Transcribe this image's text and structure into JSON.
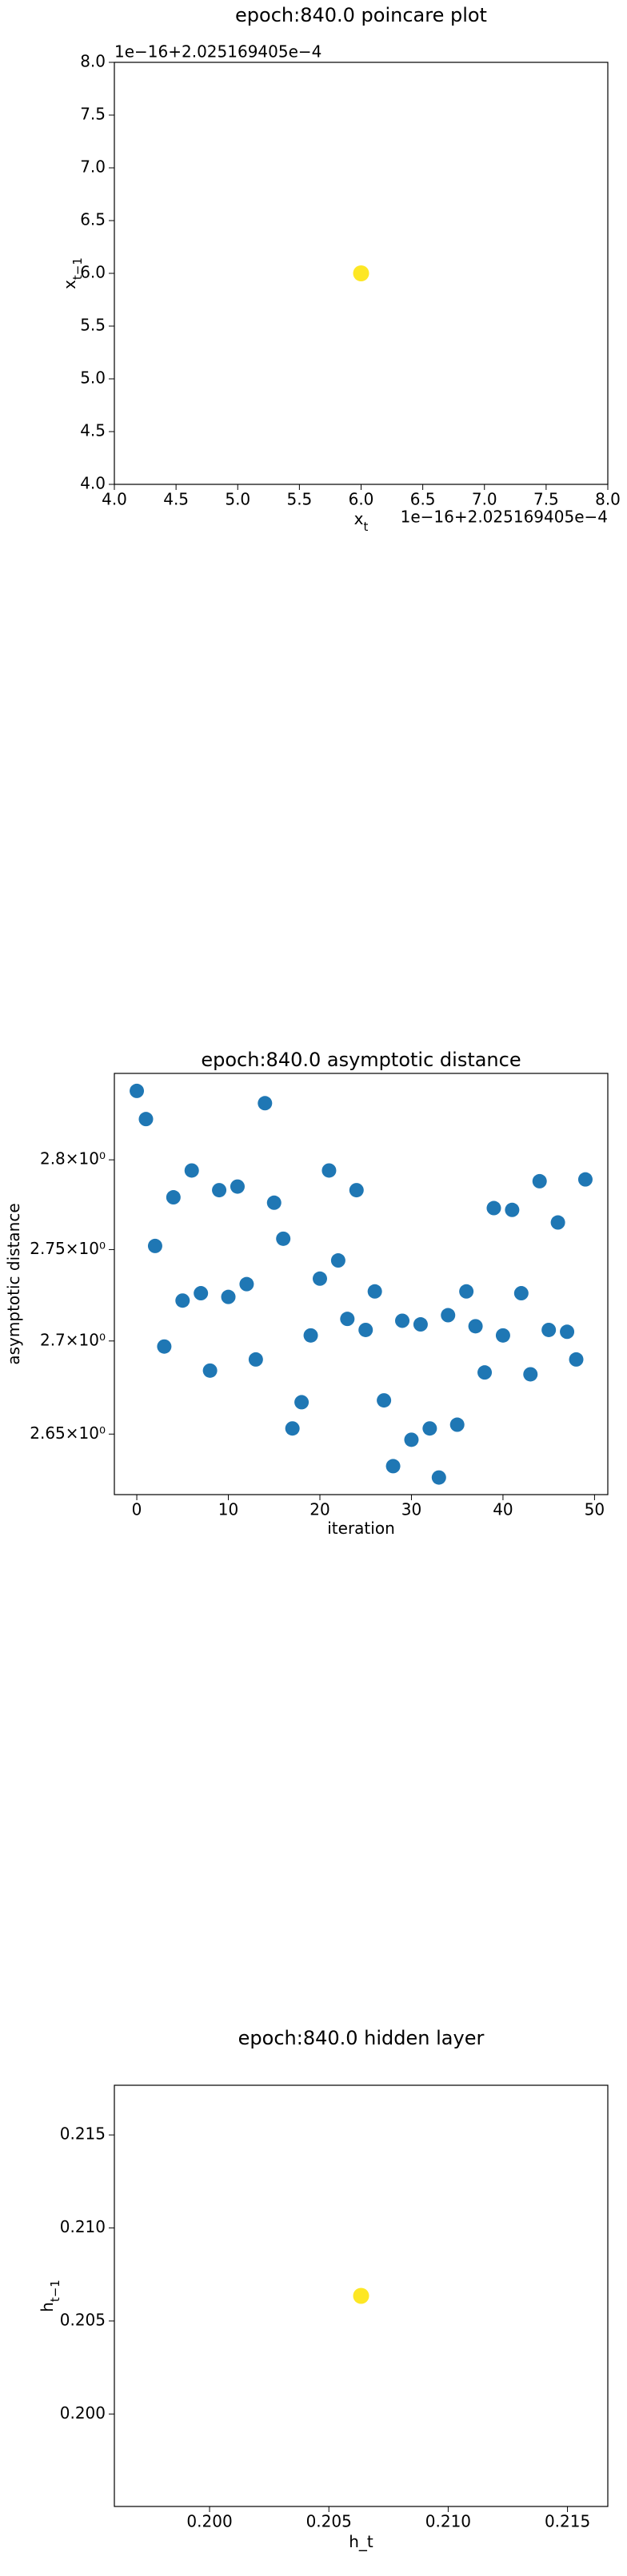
{
  "chart_data": [
    {
      "type": "scatter",
      "title": "epoch:840.0 poincare plot",
      "xlabel": {
        "text": "x",
        "sub": "t"
      },
      "ylabel": {
        "text": "x",
        "sub": "t−1"
      },
      "x_offset": "1e−16+2.025169405e−4",
      "y_offset": "1e−16+2.025169405e−4",
      "x": [
        6
      ],
      "values": [
        6
      ],
      "color": "#fde725",
      "xlim": [
        4,
        8
      ],
      "ylim": [
        4,
        8
      ],
      "xticks": [
        {
          "value": 4,
          "label": "4.0"
        },
        {
          "value": 4.5,
          "label": "4.5"
        },
        {
          "value": 5,
          "label": "5.0"
        },
        {
          "value": 5.5,
          "label": "5.5"
        },
        {
          "value": 6,
          "label": "6.0"
        },
        {
          "value": 6.5,
          "label": "6.5"
        },
        {
          "value": 7,
          "label": "7.0"
        },
        {
          "value": 7.5,
          "label": "7.5"
        },
        {
          "value": 8,
          "label": "8.0"
        }
      ],
      "yticks": [
        {
          "value": 4,
          "label": "4.0"
        },
        {
          "value": 4.5,
          "label": "4.5"
        },
        {
          "value": 5,
          "label": "5.0"
        },
        {
          "value": 5.5,
          "label": "5.5"
        },
        {
          "value": 6,
          "label": "6.0"
        },
        {
          "value": 6.5,
          "label": "6.5"
        },
        {
          "value": 7,
          "label": "7.0"
        },
        {
          "value": 7.5,
          "label": "7.5"
        },
        {
          "value": 8,
          "label": "8.0"
        }
      ]
    },
    {
      "type": "scatter",
      "title": "epoch:840.0 asymptotic distance",
      "xlabel": {
        "text": "iteration"
      },
      "ylabel": {
        "text": "asymptotic distance"
      },
      "yscale": "log",
      "x": [
        0,
        1,
        2,
        3,
        4,
        5,
        6,
        7,
        8,
        9,
        10,
        11,
        12,
        13,
        14,
        15,
        16,
        17,
        18,
        19,
        20,
        21,
        22,
        23,
        24,
        25,
        26,
        27,
        28,
        29,
        30,
        31,
        32,
        33,
        34,
        35,
        36,
        37,
        38,
        39,
        40,
        41,
        42,
        43,
        44,
        45,
        46,
        47,
        48,
        49
      ],
      "values": [
        2.839,
        2.823,
        2.752,
        2.697,
        2.779,
        2.722,
        2.794,
        2.726,
        2.684,
        2.783,
        2.724,
        2.785,
        2.731,
        2.69,
        2.832,
        2.776,
        2.756,
        2.653,
        2.667,
        2.703,
        2.734,
        2.794,
        2.744,
        2.712,
        2.783,
        2.706,
        2.727,
        2.668,
        2.633,
        2.711,
        2.647,
        2.709,
        2.653,
        2.627,
        2.714,
        2.655,
        2.727,
        2.708,
        2.683,
        2.773,
        2.703,
        2.772,
        2.726,
        2.682,
        2.788,
        2.706,
        2.765,
        2.705,
        2.69,
        2.789
      ],
      "color": "#1f77b4",
      "xlim": [
        -2.45,
        51.45
      ],
      "ylim": [
        2.618,
        2.849
      ],
      "xticks": [
        0,
        10,
        20,
        30,
        40,
        50
      ],
      "yticks": [
        {
          "value": 2.65,
          "label": "2.65×10⁰"
        },
        {
          "value": 2.7,
          "label": "2.7×10⁰"
        },
        {
          "value": 2.75,
          "label": "2.75×10⁰"
        },
        {
          "value": 2.8,
          "label": "2.8×10⁰"
        }
      ]
    },
    {
      "type": "scatter",
      "title": "epoch:840.0 hidden layer",
      "xlabel": {
        "text": "h_t"
      },
      "ylabel": {
        "text": "h",
        "sub": "t−1"
      },
      "x": [
        0.20635
      ],
      "values": [
        0.20635
      ],
      "color": "#fde725",
      "xlim": [
        0.19601,
        0.21669
      ],
      "ylim": [
        0.19503,
        0.21767
      ],
      "xticks": [
        {
          "value": 0.2,
          "label": "0.200"
        },
        0.205,
        {
          "value": 0.21,
          "label": "0.210"
        },
        0.215
      ],
      "yticks": [
        {
          "value": 0.2,
          "label": "0.200"
        },
        0.205,
        {
          "value": 0.21,
          "label": "0.210"
        },
        0.215
      ]
    }
  ]
}
